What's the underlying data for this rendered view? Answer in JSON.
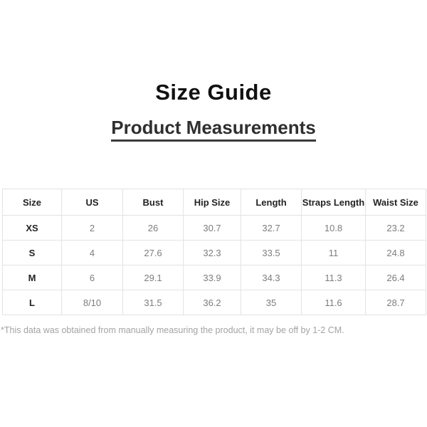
{
  "page": {
    "title": "Size Guide",
    "subtitle": "Product Measurements",
    "footnote": "*This data was obtained from manually measuring the product, it may be off by 1-2 CM."
  },
  "chart_data": {
    "type": "table",
    "title": "Product Measurements",
    "columns": [
      "Size",
      "US",
      "Bust",
      "Hip Size",
      "Length",
      "Straps Length",
      "Waist Size"
    ],
    "rows": [
      [
        "XS",
        "2",
        "26",
        "30.7",
        "32.7",
        "10.8",
        "23.2"
      ],
      [
        "S",
        "4",
        "27.6",
        "32.3",
        "33.5",
        "11",
        "24.8"
      ],
      [
        "M",
        "6",
        "29.1",
        "33.9",
        "34.3",
        "11.3",
        "26.4"
      ],
      [
        "L",
        "8/10",
        "31.5",
        "36.2",
        "35",
        "11.6",
        "28.7"
      ]
    ]
  },
  "colors": {
    "background": "#ffffff",
    "title_text": "#111111",
    "subtitle_text": "#2f2f2f",
    "table_border": "#e3e3e3",
    "header_text": "#222222",
    "value_text": "#7d7d7d",
    "footnote_text": "#a3a3a3"
  }
}
